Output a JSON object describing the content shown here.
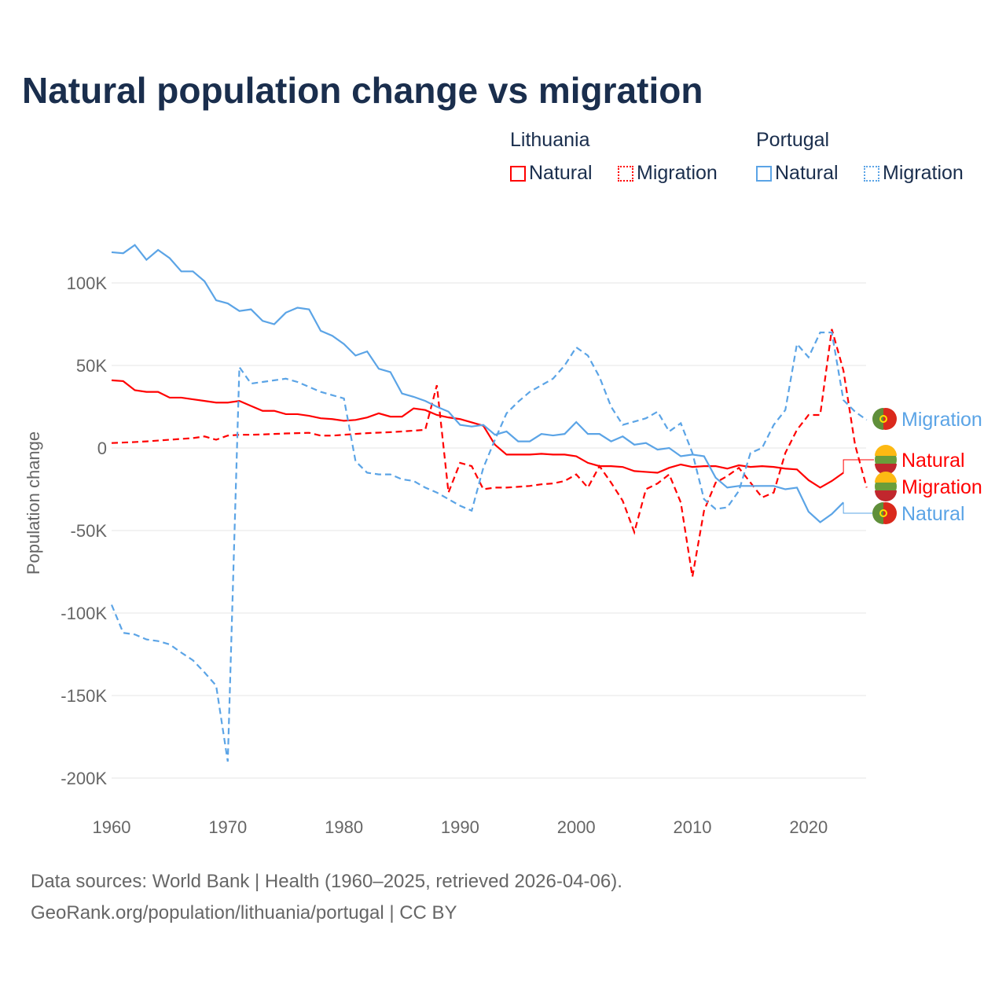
{
  "chart_data": {
    "type": "line",
    "title": "Natural population change vs migration",
    "xlabel": "",
    "ylabel": "Population change",
    "xlim": [
      1960,
      2025
    ],
    "ylim": [
      -200000,
      125000
    ],
    "yticks": [
      {
        "v": 100000,
        "label": "100K"
      },
      {
        "v": 50000,
        "label": "50K"
      },
      {
        "v": 0,
        "label": "0"
      },
      {
        "v": -50000,
        "label": "-50K"
      },
      {
        "v": -100000,
        "label": "-100K"
      },
      {
        "v": -150000,
        "label": "-150K"
      },
      {
        "v": -200000,
        "label": "-200K"
      }
    ],
    "xticks": [
      1960,
      1970,
      1980,
      1990,
      2000,
      2010,
      2020
    ],
    "legend": {
      "groups": [
        {
          "name": "Lithuania",
          "items": [
            "Natural",
            "Migration"
          ]
        },
        {
          "name": "Portugal",
          "items": [
            "Natural",
            "Migration"
          ]
        }
      ],
      "placement": "top-right"
    },
    "series": [
      {
        "name": "Lithuania Natural",
        "label": "Natural",
        "color": "#ff0000",
        "dash": false,
        "start": 1960,
        "values_k": [
          41,
          40.5,
          35,
          34,
          34,
          30.5,
          30.5,
          29.5,
          28.5,
          27.5,
          27.5,
          28.5,
          25.5,
          22.5,
          22.5,
          20.5,
          20.5,
          19.5,
          18,
          17.5,
          16.5,
          17,
          18.5,
          21,
          19,
          19,
          24,
          23,
          20,
          18.5,
          17.5,
          15.5,
          13.5,
          2,
          -4,
          -4,
          -4,
          -3.5,
          -4,
          -4,
          -5,
          -9,
          -11,
          -11,
          -11.5,
          -14,
          -14.5,
          -15,
          -12,
          -10,
          -11.5,
          -11,
          -11,
          -12.5,
          -10.5,
          -11.5,
          -11,
          -11.5,
          -12.5,
          -13,
          -19.5,
          -24,
          -20,
          -15
        ]
      },
      {
        "name": "Lithuania Migration",
        "label": "Migration",
        "color": "#ff0000",
        "dash": true,
        "start": 1960,
        "values_k": [
          3,
          3.3,
          3.6,
          4,
          4.5,
          5,
          5.5,
          6,
          7,
          5,
          7.5,
          8,
          8,
          8.2,
          8.5,
          8.8,
          9,
          9.2,
          7.5,
          7.5,
          8,
          8.5,
          9,
          9.3,
          9.6,
          10,
          10.5,
          11,
          38,
          -27,
          -9,
          -11,
          -25,
          -24,
          -24,
          -23.5,
          -23,
          -22,
          -21.5,
          -20,
          -16,
          -24,
          -11,
          -21,
          -32,
          -51,
          -25,
          -21.5,
          -16,
          -33,
          -78,
          -38,
          -21,
          -17,
          -12,
          -21,
          -30,
          -27,
          -3,
          11,
          20,
          20,
          72,
          47,
          2,
          -24
        ]
      },
      {
        "name": "Portugal Natural",
        "label": "Natural",
        "color": "#5ba4e6",
        "dash": false,
        "start": 1960,
        "values_k": [
          118.6,
          118,
          123,
          114,
          120,
          115,
          107,
          107,
          101,
          89.5,
          87.6,
          83,
          84,
          77,
          75,
          82,
          85,
          84,
          71,
          68,
          63,
          56,
          58.5,
          48,
          46,
          33,
          31,
          28.5,
          25,
          22,
          14,
          13,
          14,
          8,
          10,
          4,
          4,
          8.5,
          7.6,
          8.5,
          15.7,
          8.5,
          8.5,
          4,
          7,
          2,
          3,
          -1,
          0,
          -5,
          -4,
          -5,
          -18,
          -24,
          -23,
          -23,
          -23,
          -23,
          -25,
          -24,
          -38.6,
          -45,
          -40,
          -33
        ]
      },
      {
        "name": "Portugal Migration",
        "label": "Migration",
        "color": "#5ba4e6",
        "dash": true,
        "start": 1960,
        "values_k": [
          -95,
          -112,
          -113,
          -116,
          -117,
          -119,
          -124,
          -128.6,
          -136,
          -144,
          -190,
          49,
          39,
          40,
          41,
          42,
          40,
          37,
          34,
          32,
          30,
          -8,
          -15,
          -16,
          -16,
          -19,
          -20,
          -24,
          -27,
          -31,
          -35,
          -38,
          -12,
          5,
          21,
          28,
          34,
          38,
          42,
          50,
          61,
          56,
          43,
          25,
          14,
          16,
          18,
          22,
          10,
          15,
          -3,
          -31,
          -37,
          -36,
          -26,
          -3,
          0,
          14,
          23,
          63,
          55,
          70,
          70,
          29,
          22,
          17
        ]
      }
    ]
  },
  "source": {
    "line1": "Data sources: World Bank | Health (1960–2025, retrieved 2026-04-06).",
    "line2": "GeoRank.org/population/lithuania/portugal | CC BY"
  }
}
